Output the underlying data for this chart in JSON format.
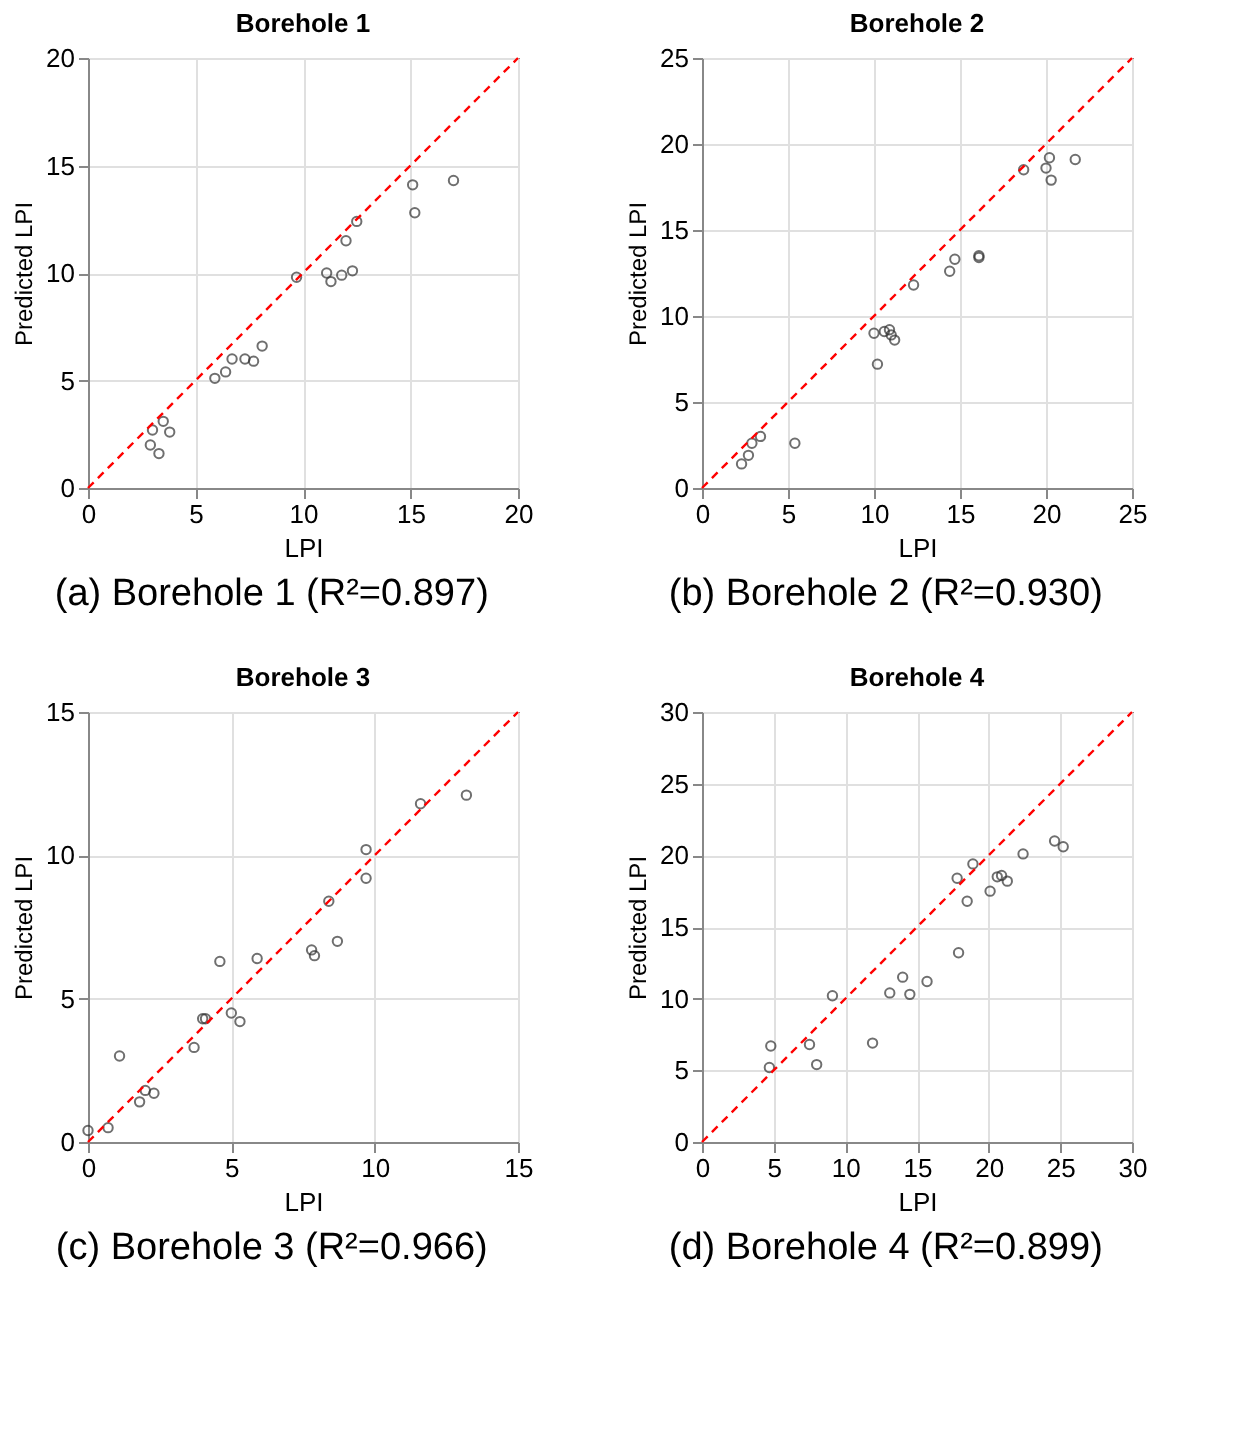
{
  "chart_data": [
    {
      "type": "scatter",
      "title": "Borehole 1",
      "xlabel": "LPI",
      "ylabel": "Predicted LPI",
      "annotations": [
        "(a) Borehole 1 (R²=0.897)"
      ],
      "xlim": [
        0,
        20
      ],
      "ylim": [
        0,
        20
      ],
      "xticks": [
        0,
        5,
        10,
        15,
        20
      ],
      "yticks": [
        0,
        5,
        10,
        15,
        20
      ],
      "grid": true,
      "series": [
        {
          "type": "scatter",
          "color": "#333333",
          "marker": "circle",
          "x": [
            2.9,
            3.0,
            3.3,
            3.5,
            3.8,
            5.9,
            6.4,
            6.7,
            7.3,
            7.7,
            8.1,
            9.7,
            11.1,
            11.3,
            11.8,
            12.0,
            12.3,
            12.5,
            15.1,
            15.2,
            17.0
          ],
          "values": [
            2.0,
            2.7,
            1.6,
            3.1,
            2.6,
            5.1,
            5.4,
            6.0,
            6.0,
            5.9,
            6.6,
            9.8,
            10.0,
            9.6,
            9.9,
            11.5,
            10.1,
            12.4,
            14.1,
            12.8,
            14.3
          ]
        },
        {
          "type": "line",
          "color": "#ff0000",
          "line_style": "dashed",
          "marker": "none",
          "x": [
            0,
            20
          ],
          "values": [
            0,
            20
          ]
        }
      ]
    },
    {
      "type": "scatter",
      "title": "Borehole 2",
      "xlabel": "LPI",
      "ylabel": "Predicted LPI",
      "annotations": [
        "(b) Borehole 2 (R²=0.930)"
      ],
      "xlim": [
        0,
        25
      ],
      "ylim": [
        0,
        25
      ],
      "xticks": [
        0,
        5,
        10,
        15,
        20,
        25
      ],
      "yticks": [
        0,
        5,
        10,
        15,
        20,
        25
      ],
      "grid": true,
      "series": [
        {
          "type": "scatter",
          "color": "#333333",
          "marker": "circle",
          "x": [
            2.3,
            2.7,
            2.9,
            3.4,
            5.4,
            10.0,
            10.2,
            10.6,
            10.9,
            11.0,
            11.2,
            12.3,
            14.4,
            14.7,
            16.1,
            16.1,
            18.7,
            20.0,
            20.2,
            20.3,
            21.7
          ],
          "values": [
            1.4,
            1.9,
            2.6,
            3.0,
            2.6,
            9.0,
            7.2,
            9.1,
            9.2,
            8.9,
            8.6,
            11.8,
            12.6,
            13.3,
            13.5,
            13.4,
            18.5,
            18.6,
            19.2,
            17.9,
            19.1
          ]
        },
        {
          "type": "line",
          "color": "#ff0000",
          "line_style": "dashed",
          "marker": "none",
          "x": [
            0,
            25
          ],
          "values": [
            0,
            25
          ]
        }
      ]
    },
    {
      "type": "scatter",
      "title": "Borehole 3",
      "xlabel": "LPI",
      "ylabel": "Predicted LPI",
      "annotations": [
        "(c) Borehole 3 (R²=0.966)"
      ],
      "xlim": [
        0,
        15
      ],
      "ylim": [
        0,
        15
      ],
      "xticks": [
        0,
        5,
        10,
        15
      ],
      "yticks": [
        0,
        5,
        10,
        15
      ],
      "grid": true,
      "series": [
        {
          "type": "scatter",
          "color": "#333333",
          "marker": "circle",
          "x": [
            0.0,
            0.7,
            1.1,
            1.8,
            2.0,
            2.3,
            3.7,
            4.0,
            4.1,
            4.6,
            5.0,
            5.3,
            5.9,
            7.8,
            7.9,
            8.4,
            8.7,
            9.7,
            9.7,
            11.6,
            13.2
          ],
          "values": [
            0.4,
            0.5,
            3.0,
            1.4,
            1.8,
            1.7,
            3.3,
            4.3,
            4.3,
            6.3,
            4.5,
            4.2,
            6.4,
            6.7,
            6.5,
            8.4,
            7.0,
            10.2,
            9.2,
            11.8,
            12.1
          ]
        },
        {
          "type": "line",
          "color": "#ff0000",
          "line_style": "dashed",
          "marker": "none",
          "x": [
            0,
            15
          ],
          "values": [
            0,
            15
          ]
        }
      ]
    },
    {
      "type": "scatter",
      "title": "Borehole 4",
      "xlabel": "LPI",
      "ylabel": "Predicted LPI",
      "annotations": [
        "(d) Borehole 4 (R²=0.899)"
      ],
      "xlim": [
        0,
        30
      ],
      "ylim": [
        0,
        30
      ],
      "xticks": [
        0,
        5,
        10,
        15,
        20,
        25,
        30
      ],
      "yticks": [
        0,
        5,
        10,
        15,
        20,
        25,
        30
      ],
      "grid": true,
      "series": [
        {
          "type": "scatter",
          "color": "#333333",
          "marker": "circle",
          "x": [
            4.8,
            4.7,
            7.5,
            8.0,
            9.1,
            11.9,
            13.1,
            14.0,
            14.5,
            15.7,
            17.8,
            17.9,
            18.5,
            18.9,
            20.1,
            20.6,
            20.9,
            21.3,
            22.4,
            24.6,
            25.2
          ],
          "values": [
            6.7,
            5.2,
            6.8,
            5.4,
            10.2,
            6.9,
            10.4,
            11.5,
            10.3,
            11.2,
            18.4,
            13.2,
            16.8,
            19.4,
            17.5,
            18.5,
            18.6,
            18.2,
            20.1,
            21.0,
            20.6
          ]
        },
        {
          "type": "line",
          "color": "#ff0000",
          "line_style": "dashed",
          "marker": "none",
          "x": [
            0,
            30
          ],
          "values": [
            0,
            30
          ]
        }
      ]
    }
  ]
}
